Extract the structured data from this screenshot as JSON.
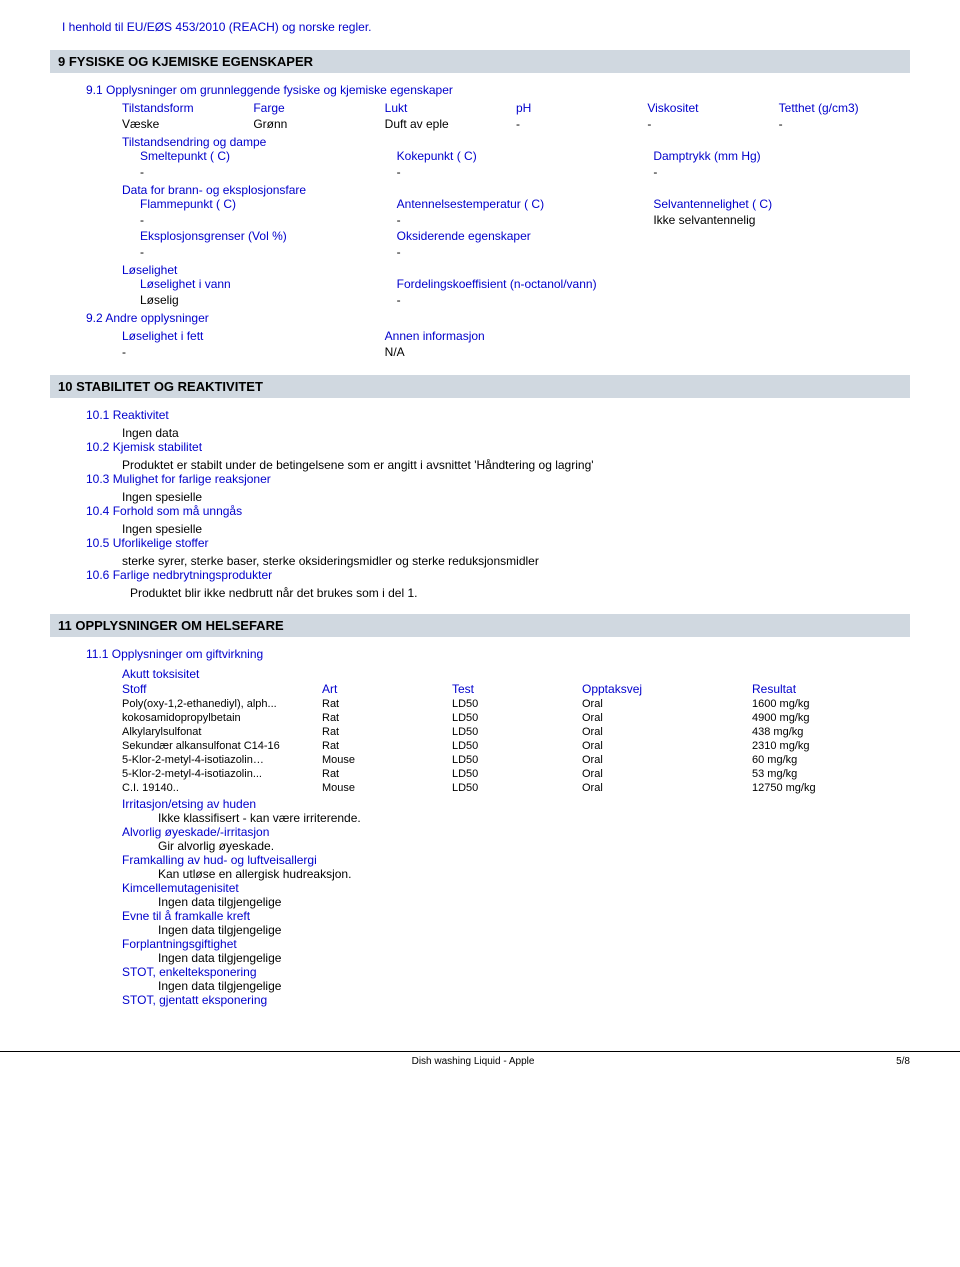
{
  "header_note": "I henhold til EU/EØS 453/2010 (REACH) og norske regler.",
  "sec9": {
    "bar": "9  FYSISKE OG KJEMISKE EGENSKAPER",
    "s91": "9.1  Opplysninger om grunnleggende fysiske og kjemiske egenskaper",
    "tilstandsform": "Tilstandsform",
    "farge": "Farge",
    "lukt": "Lukt",
    "ph": "pH",
    "viskositet": "Viskositet",
    "tetthet": "Tetthet (g/cm3)",
    "vaeske": "Væske",
    "gronn": "Grønn",
    "duft": "Duft av eple",
    "tilstandsendring": "Tilstandsendring og dampe",
    "smeltepunkt": "Smeltepunkt ( C)",
    "kokepunkt": "Kokepunkt ( C)",
    "damptrykk": "Damptrykk (mm Hg)",
    "data_brann": "Data for brann- og eksplosjonsfare",
    "flammepunkt": "Flammepunkt ( C)",
    "antennelse": "Antennelsestemperatur ( C)",
    "selvantennelighet": "Selvantennelighet ( C)",
    "ikke_selv": "Ikke selvantennelig",
    "eksplosjon": "Eksplosjonsgrenser (Vol %)",
    "oksiderende": "Oksiderende egenskaper",
    "loselighet": "Løselighet",
    "los_vann": "Løselighet i vann",
    "fordeling": "Fordelingskoeffisient (n-octanol/vann)",
    "loselig": "Løselig",
    "s92": "9.2  Andre opplysninger",
    "los_fett": "Løselighet i fett",
    "annen_info": "Annen informasjon",
    "na": "N/A"
  },
  "sec10": {
    "bar": "10  STABILITET OG REAKTIVITET",
    "s1": "10.1  Reaktivitet",
    "s1v": "Ingen data",
    "s2": "10.2  Kjemisk stabilitet",
    "s2v": "Produktet er stabilt under de betingelsene som er angitt i avsnittet 'Håndtering og lagring'",
    "s3": "10.3  Mulighet for farlige reaksjoner",
    "s3v": "Ingen spesielle",
    "s4": "10.4  Forhold som må unngås",
    "s4v": "Ingen spesielle",
    "s5": "10.5  Uforlikelige stoffer",
    "s5v": "sterke syrer, sterke baser, sterke oksideringsmidler og sterke reduksjonsmidler",
    "s6": "10.6  Farlige nedbrytningsprodukter",
    "s6v": "Produktet blir ikke nedbrutt når det brukes som i del 1."
  },
  "sec11": {
    "bar": "11  OPPLYSNINGER OM HELSEFARE",
    "s1": "11.1  Opplysninger om giftvirkning",
    "akutt": "Akutt toksisitet",
    "cols": {
      "stoff": "Stoff",
      "art": "Art",
      "test": "Test",
      "opptaksvej": "Opptaksvej",
      "resultat": "Resultat"
    },
    "rows": [
      [
        "Poly(oxy-1,2-ethanediyl), alph...",
        "Rat",
        "LD50",
        "Oral",
        "1600 mg/kg"
      ],
      [
        "kokosamidopropylbetain",
        "Rat",
        "LD50",
        "Oral",
        "4900 mg/kg"
      ],
      [
        "Alkylarylsulfonat",
        "Rat",
        "LD50",
        "Oral",
        "438 mg/kg"
      ],
      [
        "Sekundær alkansulfonat C14-16",
        "Rat",
        "LD50",
        "Oral",
        "2310 mg/kg"
      ],
      [
        "5-Klor-2-metyl-4-isotiazolin…",
        "Mouse",
        "LD50",
        "Oral",
        "60 mg/kg"
      ],
      [
        "5-Klor-2-metyl-4-isotiazolin...",
        "Rat",
        "LD50",
        "Oral",
        "53 mg/kg"
      ],
      [
        "C.I. 19140..",
        "Mouse",
        "LD50",
        "Oral",
        "12750 mg/kg"
      ]
    ],
    "irr_hud": "Irritasjon/etsing av huden",
    "irr_hud_v": "Ikke klassifisert - kan være irriterende.",
    "oye": "Alvorlig øyeskade/-irritasjon",
    "oye_v": "Gir alvorlig øyeskade.",
    "fram": "Framkalling av hud- og luftveisallergi",
    "fram_v": "Kan utløse en allergisk hudreaksjon.",
    "kim": "Kimcellemutagenisitet",
    "ingen": "Ingen data tilgjengelige",
    "kreft": "Evne til å framkalle kreft",
    "forp": "Forplantningsgiftighet",
    "stot1": "STOT, enkelteksponering",
    "stot2": "STOT, gjentatt eksponering"
  },
  "footer": {
    "left": "Dish washing Liquid - Apple",
    "right": "5/8"
  }
}
